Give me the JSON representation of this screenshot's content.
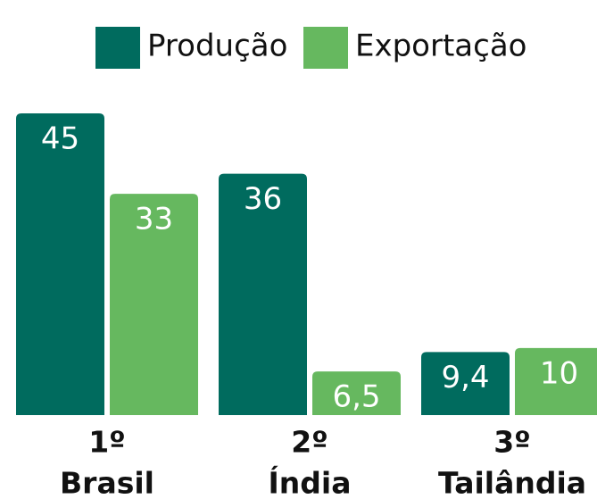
{
  "chart_data": {
    "type": "bar",
    "ranks": [
      "1º",
      "2º",
      "3º"
    ],
    "categories": [
      "Brasil",
      "Índia",
      "Tailândia"
    ],
    "series": [
      {
        "name": "Produção",
        "color": "#006b5e",
        "values": [
          45,
          36,
          9.4
        ],
        "value_labels": [
          "45",
          "36",
          "9,4"
        ]
      },
      {
        "name": "Exportação",
        "color": "#66b85f",
        "values": [
          33,
          6.5,
          10
        ],
        "value_labels": [
          "33",
          "6,5",
          "10"
        ]
      }
    ]
  }
}
